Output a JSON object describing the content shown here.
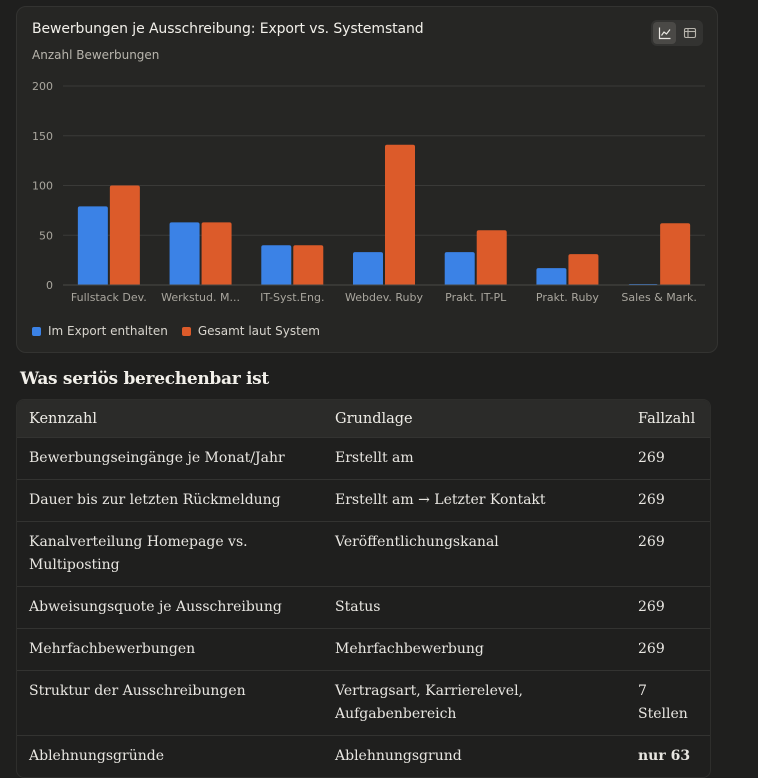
{
  "chart_card": {
    "title": "Bewerbungen je Ausschreibung: Export vs. Systemstand",
    "subtitle": "Anzahl Bewerbungen",
    "toggle": {
      "chart_icon": "line-chart-icon",
      "table_icon": "table-icon"
    }
  },
  "colors": {
    "export": "#3b82e6",
    "system": "#dc5b2a",
    "grid": "#3a3a38",
    "axis_text": "#a9a69e"
  },
  "chart_data": {
    "type": "bar",
    "title": "Bewerbungen je Ausschreibung: Export vs. Systemstand",
    "ylabel": "Anzahl Bewerbungen",
    "xlabel": "",
    "ylim": [
      0,
      200
    ],
    "yticks": [
      0,
      50,
      100,
      150,
      200
    ],
    "grid": true,
    "legend_position": "bottom-left",
    "categories": [
      "Fullstack Dev.",
      "Werkstud. M...",
      "IT-Syst.Eng.",
      "Webdev. Ruby",
      "Prakt. IT-PL",
      "Prakt. Ruby",
      "Sales & Mark."
    ],
    "series": [
      {
        "name": "Im Export enthalten",
        "values": [
          79,
          63,
          40,
          33,
          33,
          17,
          1
        ]
      },
      {
        "name": "Gesamt laut System",
        "values": [
          100,
          63,
          40,
          141,
          55,
          31,
          62
        ]
      }
    ]
  },
  "table": {
    "heading": "Was seriös berechenbar ist",
    "columns": [
      "Kennzahl",
      "Grundlage",
      "Fallzahl"
    ],
    "rows": [
      [
        "Bewerbungseingänge je Monat/Jahr",
        "Erstellt am",
        "269"
      ],
      [
        "Dauer bis zur letzten Rückmeldung",
        "Erstellt am → Letzter Kontakt",
        "269"
      ],
      [
        "Kanalverteilung Homepage vs. Multiposting",
        "Veröffentlichungskanal",
        "269"
      ],
      [
        "Abweisungsquote je Ausschreibung",
        "Status",
        "269"
      ],
      [
        "Mehrfachbewerbungen",
        "Mehrfachbewerbung",
        "269"
      ],
      [
        "Struktur der Ausschreibungen",
        "Vertragsart, Karrierelevel, Aufgabenbereich",
        "7 Stellen"
      ],
      [
        "Ablehnungsgründe",
        "Ablehnungsgrund",
        "nur 63"
      ]
    ]
  }
}
